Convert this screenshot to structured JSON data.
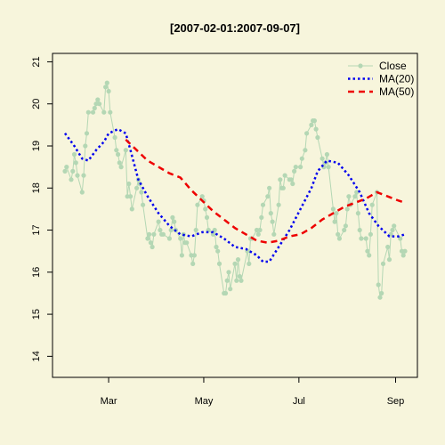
{
  "chart_data": {
    "type": "line",
    "title": "[2007-02-01:2007-09-07]",
    "xlabel": "",
    "ylabel": "",
    "x_range": [
      "2007-02-01",
      "2007-09-07"
    ],
    "ylim": [
      13.5,
      21.2
    ],
    "x_ticks": [
      {
        "date": "2007-03-01",
        "label": "Mar"
      },
      {
        "date": "2007-05-01",
        "label": "May"
      },
      {
        "date": "2007-07-01",
        "label": "Jul"
      },
      {
        "date": "2007-09-01",
        "label": "Sep"
      }
    ],
    "y_ticks": [
      14,
      15,
      16,
      17,
      18,
      19,
      20,
      21
    ],
    "legend_position": "top-right",
    "series": [
      {
        "name": "Close",
        "color": "#b4d7b4",
        "style": "line-points",
        "points": [
          [
            "2007-02-01",
            18.4
          ],
          [
            "2007-02-02",
            18.5
          ],
          [
            "2007-02-05",
            18.2
          ],
          [
            "2007-02-06",
            18.4
          ],
          [
            "2007-02-07",
            18.8
          ],
          [
            "2007-02-08",
            18.6
          ],
          [
            "2007-02-09",
            18.3
          ],
          [
            "2007-02-12",
            17.9
          ],
          [
            "2007-02-13",
            18.3
          ],
          [
            "2007-02-14",
            19.0
          ],
          [
            "2007-02-15",
            19.3
          ],
          [
            "2007-02-16",
            19.8
          ],
          [
            "2007-02-19",
            19.8
          ],
          [
            "2007-02-20",
            19.9
          ],
          [
            "2007-02-21",
            20.0
          ],
          [
            "2007-02-22",
            20.1
          ],
          [
            "2007-02-23",
            20.0
          ],
          [
            "2007-02-26",
            19.8
          ],
          [
            "2007-02-27",
            20.4
          ],
          [
            "2007-02-28",
            20.5
          ],
          [
            "2007-03-01",
            20.3
          ],
          [
            "2007-03-02",
            19.8
          ],
          [
            "2007-03-05",
            19.2
          ],
          [
            "2007-03-06",
            18.9
          ],
          [
            "2007-03-07",
            18.8
          ],
          [
            "2007-03-08",
            18.6
          ],
          [
            "2007-03-09",
            18.5
          ],
          [
            "2007-03-12",
            18.9
          ],
          [
            "2007-03-13",
            17.8
          ],
          [
            "2007-03-14",
            18.1
          ],
          [
            "2007-03-15",
            17.8
          ],
          [
            "2007-03-16",
            17.5
          ],
          [
            "2007-03-19",
            18.0
          ],
          [
            "2007-03-20",
            18.2
          ],
          [
            "2007-03-21",
            18.1
          ],
          [
            "2007-03-22",
            17.9
          ],
          [
            "2007-03-23",
            17.6
          ],
          [
            "2007-03-26",
            16.8
          ],
          [
            "2007-03-27",
            16.9
          ],
          [
            "2007-03-28",
            16.7
          ],
          [
            "2007-03-29",
            16.6
          ],
          [
            "2007-03-30",
            16.9
          ],
          [
            "2007-04-02",
            17.2
          ],
          [
            "2007-04-03",
            17.0
          ],
          [
            "2007-04-04",
            16.9
          ],
          [
            "2007-04-05",
            16.9
          ],
          [
            "2007-04-09",
            16.8
          ],
          [
            "2007-04-10",
            17.0
          ],
          [
            "2007-04-11",
            17.3
          ],
          [
            "2007-04-12",
            17.2
          ],
          [
            "2007-04-13",
            17.0
          ],
          [
            "2007-04-16",
            16.8
          ],
          [
            "2007-04-17",
            16.4
          ],
          [
            "2007-04-18",
            16.9
          ],
          [
            "2007-04-19",
            16.7
          ],
          [
            "2007-04-20",
            16.7
          ],
          [
            "2007-04-23",
            16.4
          ],
          [
            "2007-04-24",
            16.2
          ],
          [
            "2007-04-25",
            16.4
          ],
          [
            "2007-04-26",
            17.0
          ],
          [
            "2007-04-27",
            17.6
          ],
          [
            "2007-04-30",
            17.8
          ],
          [
            "2007-05-01",
            17.7
          ],
          [
            "2007-05-02",
            17.5
          ],
          [
            "2007-05-03",
            17.3
          ],
          [
            "2007-05-04",
            17.0
          ],
          [
            "2007-05-07",
            16.9
          ],
          [
            "2007-05-08",
            17.0
          ],
          [
            "2007-05-09",
            16.6
          ],
          [
            "2007-05-10",
            16.5
          ],
          [
            "2007-05-11",
            16.2
          ],
          [
            "2007-05-14",
            15.5
          ],
          [
            "2007-05-15",
            15.5
          ],
          [
            "2007-05-16",
            15.8
          ],
          [
            "2007-05-17",
            16.0
          ],
          [
            "2007-05-18",
            15.6
          ],
          [
            "2007-05-21",
            16.2
          ],
          [
            "2007-05-22",
            15.8
          ],
          [
            "2007-05-23",
            16.3
          ],
          [
            "2007-05-24",
            15.9
          ],
          [
            "2007-05-25",
            15.8
          ],
          [
            "2007-05-29",
            16.5
          ],
          [
            "2007-05-30",
            16.2
          ],
          [
            "2007-05-31",
            16.8
          ],
          [
            "2007-06-01",
            16.8
          ],
          [
            "2007-06-04",
            17.0
          ],
          [
            "2007-06-05",
            16.9
          ],
          [
            "2007-06-06",
            17.0
          ],
          [
            "2007-06-07",
            17.3
          ],
          [
            "2007-06-08",
            17.6
          ],
          [
            "2007-06-11",
            17.8
          ],
          [
            "2007-06-12",
            18.0
          ],
          [
            "2007-06-13",
            17.4
          ],
          [
            "2007-06-14",
            17.2
          ],
          [
            "2007-06-15",
            16.9
          ],
          [
            "2007-06-18",
            17.6
          ],
          [
            "2007-06-19",
            18.2
          ],
          [
            "2007-06-20",
            18.0
          ],
          [
            "2007-06-21",
            18.0
          ],
          [
            "2007-06-22",
            18.3
          ],
          [
            "2007-06-25",
            18.2
          ],
          [
            "2007-06-26",
            18.2
          ],
          [
            "2007-06-27",
            18.1
          ],
          [
            "2007-06-28",
            18.4
          ],
          [
            "2007-06-29",
            18.5
          ],
          [
            "2007-07-02",
            18.5
          ],
          [
            "2007-07-03",
            18.7
          ],
          [
            "2007-07-05",
            18.9
          ],
          [
            "2007-07-06",
            19.3
          ],
          [
            "2007-07-09",
            19.5
          ],
          [
            "2007-07-10",
            19.6
          ],
          [
            "2007-07-11",
            19.6
          ],
          [
            "2007-07-12",
            19.4
          ],
          [
            "2007-07-13",
            19.2
          ],
          [
            "2007-07-16",
            18.7
          ],
          [
            "2007-07-17",
            18.5
          ],
          [
            "2007-07-18",
            18.6
          ],
          [
            "2007-07-19",
            18.8
          ],
          [
            "2007-07-20",
            18.5
          ],
          [
            "2007-07-23",
            17.5
          ],
          [
            "2007-07-24",
            17.2
          ],
          [
            "2007-07-25",
            17.4
          ],
          [
            "2007-07-26",
            16.9
          ],
          [
            "2007-07-27",
            16.8
          ],
          [
            "2007-07-30",
            17.0
          ],
          [
            "2007-07-31",
            17.1
          ],
          [
            "2007-08-01",
            17.5
          ],
          [
            "2007-08-02",
            17.8
          ],
          [
            "2007-08-03",
            17.6
          ],
          [
            "2007-08-06",
            17.8
          ],
          [
            "2007-08-07",
            17.9
          ],
          [
            "2007-08-08",
            17.4
          ],
          [
            "2007-08-09",
            17.0
          ],
          [
            "2007-08-10",
            16.8
          ],
          [
            "2007-08-13",
            16.8
          ],
          [
            "2007-08-14",
            16.5
          ],
          [
            "2007-08-15",
            16.4
          ],
          [
            "2007-08-16",
            16.9
          ],
          [
            "2007-08-17",
            17.6
          ],
          [
            "2007-08-20",
            17.9
          ],
          [
            "2007-08-21",
            15.7
          ],
          [
            "2007-08-22",
            15.4
          ],
          [
            "2007-08-23",
            15.5
          ],
          [
            "2007-08-24",
            16.2
          ],
          [
            "2007-08-27",
            16.6
          ],
          [
            "2007-08-28",
            16.3
          ],
          [
            "2007-08-29",
            16.9
          ],
          [
            "2007-08-30",
            17.0
          ],
          [
            "2007-08-31",
            17.1
          ],
          [
            "2007-09-04",
            16.8
          ],
          [
            "2007-09-05",
            16.5
          ],
          [
            "2007-09-06",
            16.4
          ],
          [
            "2007-09-07",
            16.5
          ]
        ]
      },
      {
        "name": "MA(20)",
        "color": "#0000ee",
        "style": "dotted",
        "points": [
          [
            "2007-02-01",
            19.3
          ],
          [
            "2007-02-07",
            19.0
          ],
          [
            "2007-02-12",
            18.7
          ],
          [
            "2007-02-16",
            18.65
          ],
          [
            "2007-02-21",
            18.9
          ],
          [
            "2007-02-26",
            19.1
          ],
          [
            "2007-03-01",
            19.3
          ],
          [
            "2007-03-07",
            19.4
          ],
          [
            "2007-03-12",
            19.3
          ],
          [
            "2007-03-15",
            18.9
          ],
          [
            "2007-03-20",
            18.2
          ],
          [
            "2007-03-26",
            17.8
          ],
          [
            "2007-04-02",
            17.4
          ],
          [
            "2007-04-09",
            17.1
          ],
          [
            "2007-04-16",
            16.9
          ],
          [
            "2007-04-23",
            16.85
          ],
          [
            "2007-04-30",
            16.95
          ],
          [
            "2007-05-07",
            16.95
          ],
          [
            "2007-05-14",
            16.8
          ],
          [
            "2007-05-21",
            16.6
          ],
          [
            "2007-05-28",
            16.55
          ],
          [
            "2007-06-04",
            16.4
          ],
          [
            "2007-06-08",
            16.25
          ],
          [
            "2007-06-12",
            16.25
          ],
          [
            "2007-06-18",
            16.6
          ],
          [
            "2007-06-25",
            17.0
          ],
          [
            "2007-07-02",
            17.5
          ],
          [
            "2007-07-09",
            18.0
          ],
          [
            "2007-07-13",
            18.4
          ],
          [
            "2007-07-19",
            18.65
          ],
          [
            "2007-07-26",
            18.6
          ],
          [
            "2007-08-02",
            18.3
          ],
          [
            "2007-08-09",
            17.9
          ],
          [
            "2007-08-15",
            17.4
          ],
          [
            "2007-08-21",
            17.1
          ],
          [
            "2007-08-28",
            16.85
          ],
          [
            "2007-09-03",
            16.85
          ],
          [
            "2007-09-07",
            16.9
          ]
        ]
      },
      {
        "name": "MA(50)",
        "color": "#ee0000",
        "style": "dashed",
        "points": [
          [
            "2007-03-12",
            19.15
          ],
          [
            "2007-03-19",
            18.9
          ],
          [
            "2007-03-26",
            18.65
          ],
          [
            "2007-04-02",
            18.5
          ],
          [
            "2007-04-09",
            18.35
          ],
          [
            "2007-04-16",
            18.25
          ],
          [
            "2007-04-23",
            17.95
          ],
          [
            "2007-04-30",
            17.7
          ],
          [
            "2007-05-07",
            17.45
          ],
          [
            "2007-05-14",
            17.25
          ],
          [
            "2007-05-21",
            17.05
          ],
          [
            "2007-05-28",
            16.9
          ],
          [
            "2007-06-04",
            16.75
          ],
          [
            "2007-06-11",
            16.7
          ],
          [
            "2007-06-18",
            16.75
          ],
          [
            "2007-06-25",
            16.85
          ],
          [
            "2007-07-02",
            16.9
          ],
          [
            "2007-07-09",
            17.05
          ],
          [
            "2007-07-16",
            17.25
          ],
          [
            "2007-07-23",
            17.4
          ],
          [
            "2007-07-30",
            17.55
          ],
          [
            "2007-08-06",
            17.65
          ],
          [
            "2007-08-13",
            17.75
          ],
          [
            "2007-08-20",
            17.9
          ],
          [
            "2007-08-27",
            17.8
          ],
          [
            "2007-09-03",
            17.7
          ],
          [
            "2007-09-07",
            17.65
          ]
        ]
      }
    ]
  }
}
